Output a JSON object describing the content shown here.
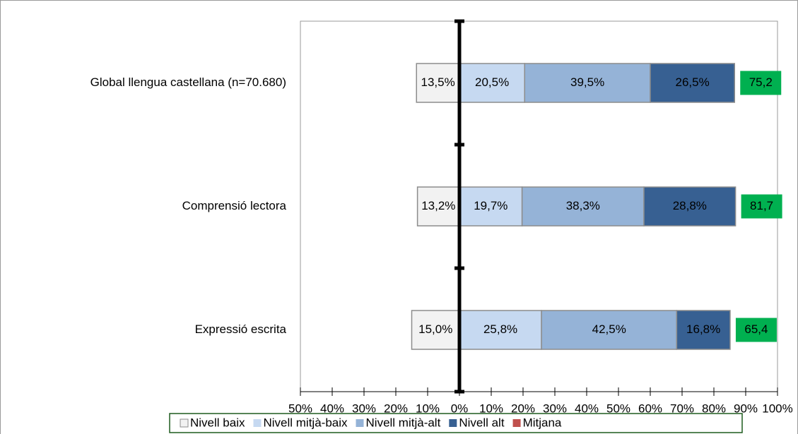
{
  "chart_data": {
    "type": "diverging_bar",
    "categories": [
      "Global llengua castellana (n=70.680)",
      "Comprensió lectora",
      "Expressió escrita"
    ],
    "series": [
      {
        "name": "Nivell baix",
        "color": "#f2f2f2",
        "values": [
          -13.5,
          -13.2,
          -15.0
        ],
        "value_labels": [
          "13,5%",
          "13,2%",
          "15,0%"
        ]
      },
      {
        "name": "Nivell mitjà-baix",
        "color": "#c6d9f1",
        "values": [
          20.5,
          19.7,
          25.8
        ],
        "value_labels": [
          "20,5%",
          "19,7%",
          "25,8%"
        ]
      },
      {
        "name": "Nivell mitjà-alt",
        "color": "#95b3d7",
        "values": [
          39.5,
          38.3,
          42.5
        ],
        "value_labels": [
          "39,5%",
          "38,3%",
          "42,5%"
        ]
      },
      {
        "name": "Nivell alt",
        "color": "#376092",
        "values": [
          26.5,
          28.8,
          16.8
        ],
        "value_labels": [
          "26,5%",
          "28,8%",
          "16,8%"
        ]
      },
      {
        "name": "Mitjana",
        "color": "#c0504d",
        "label_color": "#00b050",
        "values": [
          75.2,
          81.7,
          65.4
        ],
        "value_labels": [
          "75,2",
          "81,7",
          "65,4"
        ]
      }
    ],
    "xlim": [
      -50,
      100
    ],
    "xticks": [
      {
        "value": -50,
        "label": "50%"
      },
      {
        "value": -40,
        "label": "40%"
      },
      {
        "value": -30,
        "label": "30%"
      },
      {
        "value": -20,
        "label": "20%"
      },
      {
        "value": -10,
        "label": "10%"
      },
      {
        "value": 0,
        "label": "0%"
      },
      {
        "value": 10,
        "label": "10%"
      },
      {
        "value": 20,
        "label": "20%"
      },
      {
        "value": 30,
        "label": "30%"
      },
      {
        "value": 40,
        "label": "40%"
      },
      {
        "value": 50,
        "label": "50%"
      },
      {
        "value": 60,
        "label": "60%"
      },
      {
        "value": 70,
        "label": "70%"
      },
      {
        "value": 80,
        "label": "80%"
      },
      {
        "value": 90,
        "label": "90%"
      },
      {
        "value": 100,
        "label": "100%"
      }
    ],
    "legend": "bottom"
  }
}
